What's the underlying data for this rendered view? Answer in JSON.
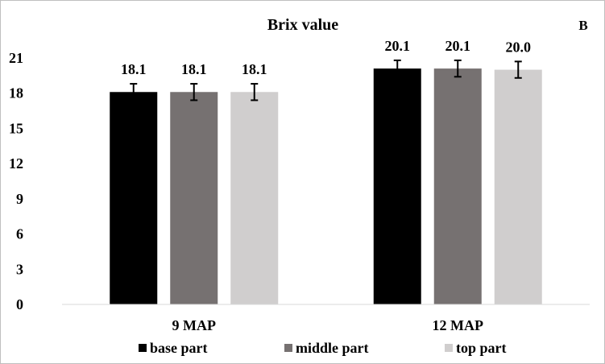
{
  "chart_data": {
    "type": "bar",
    "title": "Brix value",
    "panel_label": "B",
    "categories": [
      "9 MAP",
      "12 MAP"
    ],
    "series": [
      {
        "name": "base part",
        "color": "#000000",
        "values": [
          18.1,
          20.1
        ],
        "labels": [
          "18.1",
          "20.1"
        ],
        "errors": [
          0.7,
          0.7
        ]
      },
      {
        "name": "middle part",
        "color": "#767171",
        "values": [
          18.1,
          20.1
        ],
        "labels": [
          "18.1",
          "20.1"
        ],
        "errors": [
          0.7,
          0.7
        ]
      },
      {
        "name": "top part",
        "color": "#d0cece",
        "values": [
          18.1,
          20.0
        ],
        "labels": [
          "18.1",
          "20.0"
        ],
        "errors": [
          0.7,
          0.7
        ]
      }
    ],
    "ylim": [
      0,
      21
    ],
    "yticks": [
      0,
      3,
      6,
      9,
      12,
      15,
      18,
      21
    ],
    "grid": false,
    "legend_position": "bottom"
  }
}
